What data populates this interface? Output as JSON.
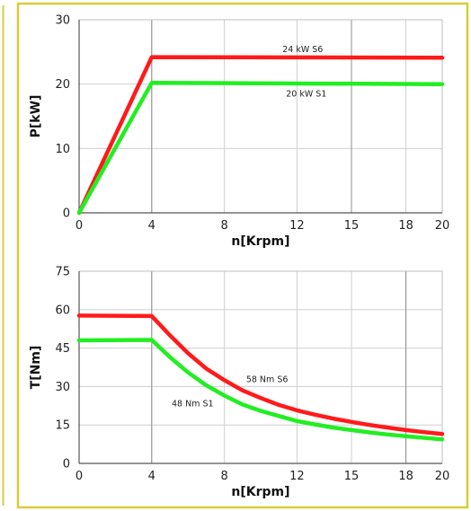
{
  "chart_data": [
    {
      "type": "line",
      "xlabel": "n[Krpm]",
      "ylabel": "P[kW]",
      "xticks": [
        0,
        4,
        8,
        12,
        15,
        18,
        20
      ],
      "yticks": [
        0,
        10,
        20,
        30
      ],
      "xlim": [
        0,
        20
      ],
      "ylim": [
        0,
        30
      ],
      "grid": true,
      "series": [
        {
          "name": "24 kW S6",
          "color": "#ff1a1a",
          "x": [
            0,
            4,
            20
          ],
          "y": [
            0,
            24.2,
            24.1
          ]
        },
        {
          "name": "20 kW S1",
          "color": "#22ee22",
          "x": [
            0,
            4,
            20
          ],
          "y": [
            0,
            20.2,
            20.0
          ]
        }
      ],
      "annotations": [
        {
          "text": "24 kW S6",
          "x": 11.2,
          "y": 25.0
        },
        {
          "text": "20 kW S1",
          "x": 11.4,
          "y": 18.1
        }
      ]
    },
    {
      "type": "line",
      "xlabel": "n[Krpm]",
      "ylabel": "T[Nm]",
      "xticks": [
        0,
        4,
        8,
        12,
        15,
        18,
        20
      ],
      "yticks": [
        0,
        15,
        30,
        45,
        60,
        75
      ],
      "xlim": [
        0,
        20
      ],
      "ylim": [
        0,
        75
      ],
      "grid": true,
      "series": [
        {
          "name": "58 Nm S6",
          "color": "#ff1a1a",
          "x": [
            0,
            4,
            5,
            6,
            7,
            8,
            9,
            10,
            11,
            12,
            13,
            14,
            15,
            16,
            17,
            18,
            19,
            20
          ],
          "y": [
            57.7,
            57.5,
            50.0,
            43.0,
            37.0,
            32.5,
            28.5,
            25.5,
            22.8,
            20.7,
            19.0,
            17.5,
            16.2,
            15.0,
            14.0,
            13.0,
            12.2,
            11.5
          ]
        },
        {
          "name": "48 Nm S1",
          "color": "#22ee22",
          "x": [
            0,
            4,
            5,
            6,
            7,
            8,
            9,
            10,
            11,
            12,
            13,
            14,
            15,
            16,
            17,
            18,
            19,
            20
          ],
          "y": [
            48.0,
            48.2,
            41.5,
            35.5,
            30.5,
            26.5,
            23.0,
            20.5,
            18.5,
            16.5,
            15.2,
            14.0,
            13.0,
            12.1,
            11.3,
            10.6,
            10.0,
            9.4
          ]
        }
      ],
      "annotations": [
        {
          "text": "58 Nm S6",
          "x": 9.2,
          "y": 31.8
        },
        {
          "text": "48 Nm S1",
          "x": 5.1,
          "y": 22.3
        }
      ]
    }
  ]
}
